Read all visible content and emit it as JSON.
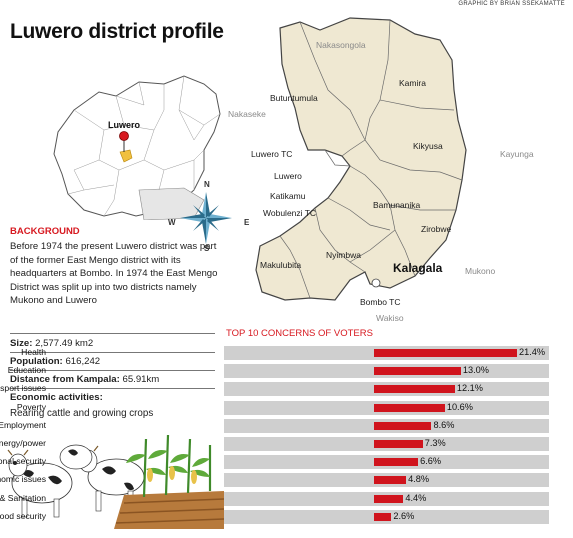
{
  "credit": "GRAPHIC BY BRIAN SSEKAMATTE",
  "title": "Luwero district profile",
  "uganda_map": {
    "pin_label": "Luwero"
  },
  "compass": {
    "n": "N",
    "s": "S",
    "e": "E",
    "w": "W"
  },
  "district_map": {
    "neighbours": {
      "nakasongola": "Nakasongola",
      "nakaseke": "Nakaseke",
      "kayunga": "Kayunga",
      "mukono": "Mukono",
      "wakiso": "Wakiso"
    },
    "subcounties": {
      "kamira": "Kamira",
      "butuntumula": "Butuntumula",
      "kikyusa": "Kikyusa",
      "luwero_tc": "Luwero TC",
      "luwero": "Luwero",
      "katikamu": "Katikamu",
      "wobulenzi_tc": "Wobulenzi TC",
      "bamunanika": "Bamunanika",
      "zirobwe": "Zirobwe",
      "nyimbwa": "Nyimbwa",
      "makulubita": "Makulubita",
      "kalagala": "Kalagala",
      "bombo_tc": "Bombo TC"
    }
  },
  "background": {
    "heading": "BACKGROUND",
    "text": "Before 1974 the present Luwero district was part of the former East Mengo district with its headquarters at Bombo. In 1974 the East Mengo District was split up into two districts namely Mukono and Luwero"
  },
  "facts": {
    "size_label": "Size:",
    "size_value": "2,577.49 km2",
    "population_label": "Population:",
    "population_value": "616,242",
    "distance_label": "Distance from Kampala:",
    "distance_value": "65.91km",
    "economic_label": "Economic activities:",
    "economic_text": "Rearing cattle and growing crops"
  },
  "chart_data": {
    "type": "bar",
    "title": "TOP 10 CONCERNS OF VOTERS",
    "categories": [
      "Health",
      "Education",
      "Road network & transport issues",
      "Poverty",
      "Employment",
      "Energy/power",
      "National security",
      "Business & economic issues",
      "Water & Sanitation",
      "Agriculture & food security"
    ],
    "values": [
      21.4,
      13.0,
      12.1,
      10.6,
      8.6,
      7.3,
      6.6,
      4.8,
      4.4,
      2.6
    ],
    "value_labels": [
      "21.4%",
      "13.0%",
      "12.1%",
      "10.6%",
      "8.6%",
      "7.3%",
      "6.6%",
      "4.8%",
      "4.4%",
      "2.6%"
    ],
    "orientation": "horizontal",
    "bar_color": "#d0141d",
    "row_background": "#cfcfcf"
  },
  "colors": {
    "accent_red": "#d71920",
    "map_fill": "#efe8d2",
    "bar_red": "#d0141d"
  }
}
